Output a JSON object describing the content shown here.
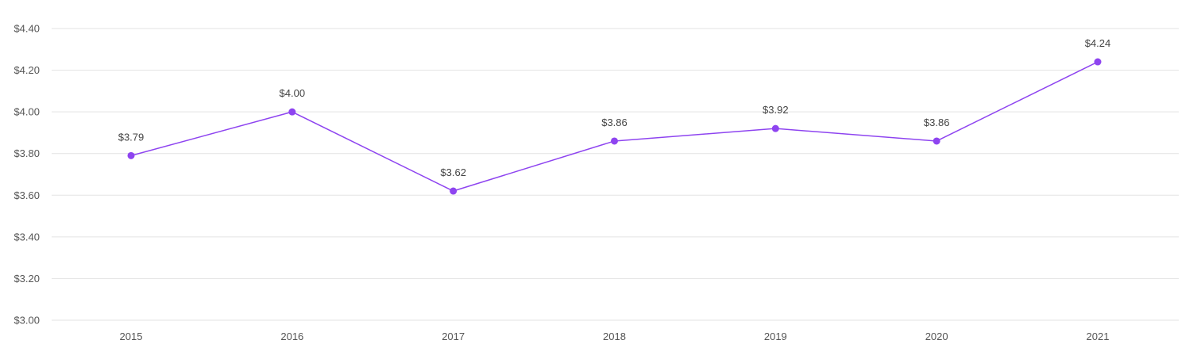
{
  "chart_data": {
    "type": "line",
    "title": "",
    "xlabel": "",
    "ylabel": "",
    "categories": [
      "2015",
      "2016",
      "2017",
      "2018",
      "2019",
      "2020",
      "2021"
    ],
    "series": [
      {
        "values": [
          3.79,
          4.0,
          3.62,
          3.86,
          3.92,
          3.86,
          4.24
        ],
        "data_labels": [
          "$3.79",
          "$4.00",
          "$3.62",
          "$3.86",
          "$3.92",
          "$3.86",
          "$4.24"
        ],
        "color": "#8e44f0"
      }
    ],
    "ylim": [
      3.0,
      4.4
    ],
    "y_ticks": [
      3.0,
      3.2,
      3.4,
      3.6,
      3.8,
      4.0,
      4.2,
      4.4
    ],
    "y_tick_labels": [
      "$3.00",
      "$3.20",
      "$3.40",
      "$3.60",
      "$3.80",
      "$4.00",
      "$4.20",
      "$4.40"
    ],
    "grid": true,
    "legend": "none",
    "colors": {
      "line": "#8e44f0",
      "marker": "#8e44f0",
      "grid": "#e3e3e3",
      "text": "#555555"
    }
  }
}
